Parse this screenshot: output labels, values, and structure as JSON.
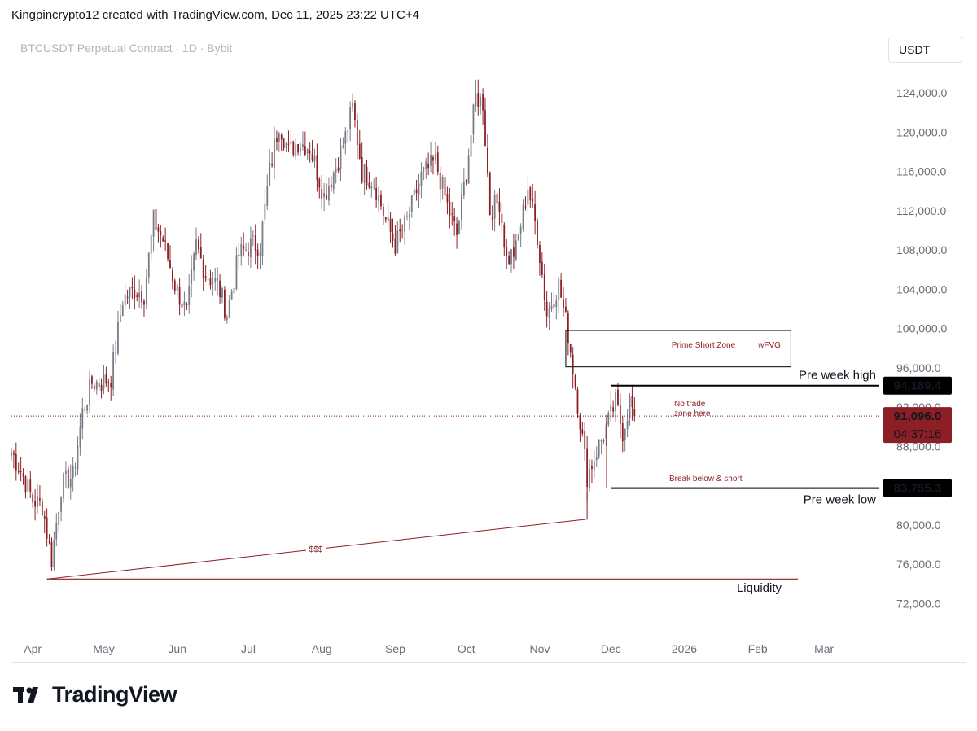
{
  "header": {
    "attribution": "Kingpincrypto12 created with TradingView.com, Dec 11, 2025 23:22 UTC+4",
    "symbol": "BTCUSDT Perpetual Contract · 1D · Bybit",
    "currency": "USDT"
  },
  "brand": {
    "name": "TradingView"
  },
  "colors": {
    "up_candle": "#787b86",
    "down_candle": "#8b1f24",
    "annotation": "#8b1f24",
    "level_line": "#000000",
    "price_label_bg": "#000000",
    "current_label_bg": "#8b1f24"
  },
  "chart_data": {
    "type": "candlestick",
    "title": "BTCUSDT Perpetual Contract · 1D · Bybit",
    "ylim": [
      70000,
      128000
    ],
    "y_ticks": [
      72000,
      76000,
      80000,
      84000,
      88000,
      92000,
      96000,
      100000,
      104000,
      108000,
      112000,
      116000,
      120000,
      124000
    ],
    "y_tick_labels": [
      "72,000.0",
      "76,000.0",
      "80,000.0",
      "",
      "88,000.0",
      "92,000.0",
      "96,000.0",
      "100,000.0",
      "104,000.0",
      "108,000.0",
      "112,000.0",
      "116,000.0",
      "120,000.0",
      "124,000.0"
    ],
    "x_labels": [
      "Apr",
      "May",
      "Jun",
      "Jul",
      "Aug",
      "Sep",
      "Oct",
      "Nov",
      "Dec",
      "2026",
      "Feb",
      "Mar"
    ],
    "x_label_dates": [
      "2025-04-01",
      "2025-05-01",
      "2025-06-01",
      "2025-07-01",
      "2025-08-01",
      "2025-09-01",
      "2025-10-01",
      "2025-11-01",
      "2025-12-01",
      "2026-01-01",
      "2026-02-01",
      "2026-03-01"
    ],
    "x_range": [
      "2025-03-23",
      "2026-03-31"
    ],
    "price_path": [
      [
        "2025-03-23",
        87500
      ],
      [
        "2025-03-27",
        85500
      ],
      [
        "2025-04-01",
        82500
      ],
      [
        "2025-04-05",
        82000
      ],
      [
        "2025-04-09",
        76500
      ],
      [
        "2025-04-13",
        84000
      ],
      [
        "2025-04-18",
        85000
      ],
      [
        "2025-04-22",
        91500
      ],
      [
        "2025-04-26",
        94500
      ],
      [
        "2025-04-30",
        94500
      ],
      [
        "2025-05-04",
        95000
      ],
      [
        "2025-05-09",
        103000
      ],
      [
        "2025-05-14",
        104000
      ],
      [
        "2025-05-18",
        103500
      ],
      [
        "2025-05-22",
        111000
      ],
      [
        "2025-05-26",
        109000
      ],
      [
        "2025-05-31",
        104500
      ],
      [
        "2025-06-05",
        101500
      ],
      [
        "2025-06-09",
        108500
      ],
      [
        "2025-06-13",
        105500
      ],
      [
        "2025-06-18",
        104500
      ],
      [
        "2025-06-22",
        101500
      ],
      [
        "2025-06-27",
        107500
      ],
      [
        "2025-07-02",
        108500
      ],
      [
        "2025-07-06",
        108500
      ],
      [
        "2025-07-10",
        116000
      ],
      [
        "2025-07-14",
        121000
      ],
      [
        "2025-07-18",
        118000
      ],
      [
        "2025-07-22",
        119000
      ],
      [
        "2025-07-27",
        118500
      ],
      [
        "2025-08-02",
        113500
      ],
      [
        "2025-08-07",
        116500
      ],
      [
        "2025-08-11",
        119500
      ],
      [
        "2025-08-14",
        122500
      ],
      [
        "2025-08-18",
        116000
      ],
      [
        "2025-08-23",
        115000
      ],
      [
        "2025-08-28",
        111000
      ],
      [
        "2025-09-01",
        108500
      ],
      [
        "2025-09-06",
        111000
      ],
      [
        "2025-09-12",
        115500
      ],
      [
        "2025-09-18",
        117000
      ],
      [
        "2025-09-23",
        112500
      ],
      [
        "2025-09-27",
        109500
      ],
      [
        "2025-10-01",
        116000
      ],
      [
        "2025-10-05",
        123500
      ],
      [
        "2025-10-08",
        123000
      ],
      [
        "2025-10-11",
        112000
      ],
      [
        "2025-10-15",
        113000
      ],
      [
        "2025-10-18",
        107000
      ],
      [
        "2025-10-22",
        108000
      ],
      [
        "2025-10-27",
        114500
      ],
      [
        "2025-10-31",
        109500
      ],
      [
        "2025-11-04",
        101500
      ],
      [
        "2025-11-09",
        104500
      ],
      [
        "2025-11-13",
        99500
      ],
      [
        "2025-11-17",
        92500
      ],
      [
        "2025-11-21",
        85000
      ],
      [
        "2025-11-25",
        87500
      ],
      [
        "2025-11-30",
        90500
      ],
      [
        "2025-12-03",
        92500
      ],
      [
        "2025-12-06",
        89500
      ],
      [
        "2025-12-09",
        92500
      ],
      [
        "2025-12-11",
        91100
      ]
    ],
    "levels": [
      {
        "name": "Pre week high",
        "value": 94189.4,
        "label": "94,189.4",
        "from": "2025-12-01"
      },
      {
        "name": "Pre week low",
        "value": 83755.3,
        "label": "83,755.3",
        "from": "2025-12-01"
      }
    ],
    "current_price": {
      "value": 91096.0,
      "label": "91,096.0",
      "countdown": "04:37:16"
    },
    "zones": [
      {
        "label": "Prime Short Zone",
        "tag": "wFVG",
        "low": 96100,
        "high": 99800,
        "from": "2025-11-12",
        "to": "2026-02-15"
      }
    ],
    "annotations": {
      "pre_week_high": "Pre week high",
      "pre_week_low": "Pre week low",
      "no_trade_1": "No trade",
      "no_trade_2": "zone here",
      "break_short": "Break below & short",
      "sss": "$$$",
      "liquidity": "Liquidity"
    },
    "liquidity_line": {
      "value": 74500,
      "from": "2025-04-07",
      "to": "2026-02-18"
    },
    "trend_line": {
      "from": [
        "2025-04-07",
        74500
      ],
      "to": [
        "2025-11-21",
        80600
      ]
    }
  }
}
